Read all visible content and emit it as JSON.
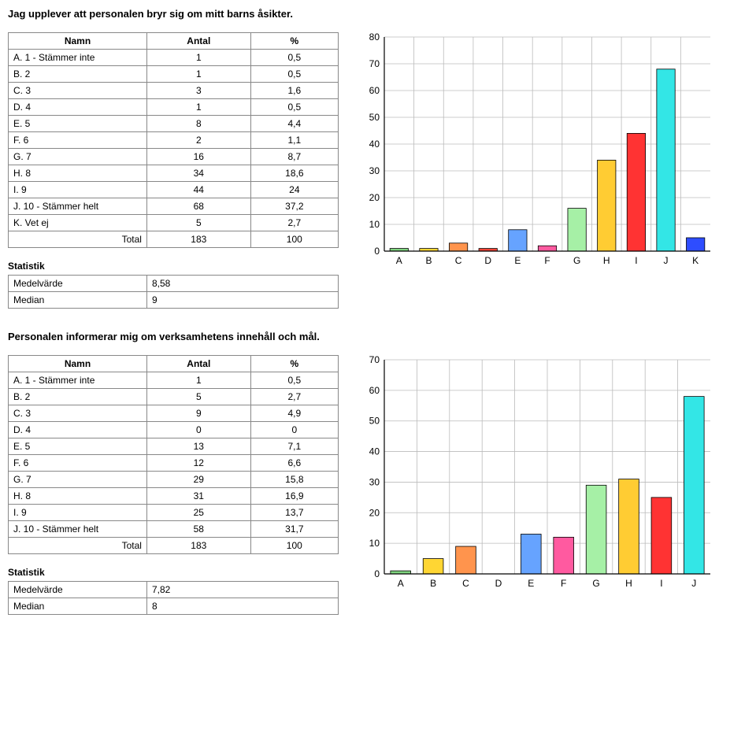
{
  "q1": {
    "title": "Jag upplever att personalen bryr sig om mitt barns åsikter.",
    "headers": {
      "name": "Namn",
      "count": "Antal",
      "pct": "%"
    },
    "rows": [
      {
        "name": "A. 1 - Stämmer inte",
        "count": "1",
        "pct": "0,5"
      },
      {
        "name": "B. 2",
        "count": "1",
        "pct": "0,5"
      },
      {
        "name": "C. 3",
        "count": "3",
        "pct": "1,6"
      },
      {
        "name": "D. 4",
        "count": "1",
        "pct": "0,5"
      },
      {
        "name": "E. 5",
        "count": "8",
        "pct": "4,4"
      },
      {
        "name": "F. 6",
        "count": "2",
        "pct": "1,1"
      },
      {
        "name": "G. 7",
        "count": "16",
        "pct": "8,7"
      },
      {
        "name": "H. 8",
        "count": "34",
        "pct": "18,6"
      },
      {
        "name": "I. 9",
        "count": "44",
        "pct": "24"
      },
      {
        "name": "J. 10 - Stämmer helt",
        "count": "68",
        "pct": "37,2"
      },
      {
        "name": "K. Vet ej",
        "count": "5",
        "pct": "2,7"
      },
      {
        "name": "Total",
        "count": "183",
        "pct": "100",
        "total": true
      }
    ],
    "stats_title": "Statistik",
    "stats": [
      {
        "label": "Medelvärde",
        "value": "8,58"
      },
      {
        "label": "Median",
        "value": "9"
      }
    ],
    "chart": {
      "type": "bar",
      "categories": [
        "A",
        "B",
        "C",
        "D",
        "E",
        "F",
        "G",
        "H",
        "I",
        "J",
        "K"
      ],
      "values": [
        1,
        1,
        3,
        1,
        8,
        2,
        16,
        34,
        44,
        68,
        5
      ],
      "bar_colors": [
        "#7fd47f",
        "#ffd633",
        "#ff944d",
        "#f44336",
        "#66a3ff",
        "#ff5aa0",
        "#a6f0a6",
        "#ffcc33",
        "#ff3333",
        "#33e6e6",
        "#2e4dff"
      ],
      "ylim": [
        0,
        80
      ],
      "ytick_step": 10,
      "background_color": "#ffffff",
      "grid_color": "#bbbbbb",
      "bar_fill_ratio": 0.62,
      "label_fontsize": 12
    }
  },
  "q2": {
    "title": "Personalen informerar mig om verksamhetens innehåll och mål.",
    "headers": {
      "name": "Namn",
      "count": "Antal",
      "pct": "%"
    },
    "rows": [
      {
        "name": "A. 1 - Stämmer inte",
        "count": "1",
        "pct": "0,5"
      },
      {
        "name": "B. 2",
        "count": "5",
        "pct": "2,7"
      },
      {
        "name": "C. 3",
        "count": "9",
        "pct": "4,9"
      },
      {
        "name": "D. 4",
        "count": "0",
        "pct": "0"
      },
      {
        "name": "E. 5",
        "count": "13",
        "pct": "7,1"
      },
      {
        "name": "F. 6",
        "count": "12",
        "pct": "6,6"
      },
      {
        "name": "G. 7",
        "count": "29",
        "pct": "15,8"
      },
      {
        "name": "H. 8",
        "count": "31",
        "pct": "16,9"
      },
      {
        "name": "I. 9",
        "count": "25",
        "pct": "13,7"
      },
      {
        "name": "J. 10 - Stämmer helt",
        "count": "58",
        "pct": "31,7"
      },
      {
        "name": "Total",
        "count": "183",
        "pct": "100",
        "total": true
      }
    ],
    "stats_title": "Statistik",
    "stats": [
      {
        "label": "Medelvärde",
        "value": "7,82"
      },
      {
        "label": "Median",
        "value": "8"
      }
    ],
    "chart": {
      "type": "bar",
      "categories": [
        "A",
        "B",
        "C",
        "D",
        "E",
        "F",
        "G",
        "H",
        "I",
        "J"
      ],
      "values": [
        1,
        5,
        9,
        0,
        13,
        12,
        29,
        31,
        25,
        58
      ],
      "bar_colors": [
        "#7fd47f",
        "#ffd633",
        "#ff944d",
        "#f44336",
        "#66a3ff",
        "#ff5aa0",
        "#a6f0a6",
        "#ffcc33",
        "#ff3333",
        "#33e6e6"
      ],
      "ylim": [
        0,
        70
      ],
      "ytick_step": 10,
      "background_color": "#ffffff",
      "grid_color": "#bbbbbb",
      "bar_fill_ratio": 0.62,
      "label_fontsize": 12
    }
  }
}
